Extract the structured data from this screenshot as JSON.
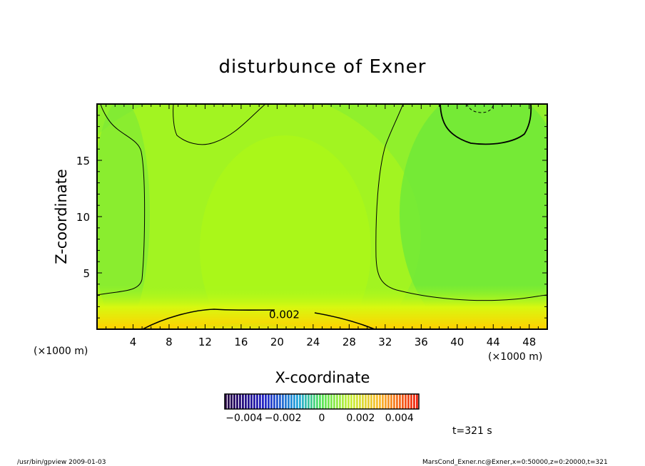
{
  "chart_data": {
    "type": "heatmap",
    "title": "disturbunce of Exner",
    "xlabel": "X-coordinate",
    "ylabel": "Z-coordinate",
    "x_unit_left": "(×1000 m)",
    "x_unit_right": "(×1000 m)",
    "x_ticks": [
      "4",
      "8",
      "12",
      "16",
      "20",
      "24",
      "28",
      "32",
      "36",
      "40",
      "44",
      "48"
    ],
    "y_ticks": [
      "5",
      "10",
      "15"
    ],
    "xlim": [
      0,
      50
    ],
    "ylim": [
      0,
      20
    ],
    "contour_labels": [
      {
        "text": "0.002",
        "x": 20.8,
        "z": 1.3
      }
    ],
    "colorbar": {
      "range": [
        -0.005,
        0.005
      ],
      "tick_labels": [
        "−0.004",
        "−0.002",
        "0",
        "0.002",
        "0.004"
      ],
      "tick_values": [
        -0.004,
        -0.002,
        0,
        0.002,
        0.004
      ]
    },
    "field_summary": {
      "background_value": 0.0006,
      "max_value_near_bottom": 0.0028,
      "min_value_top_right": -0.0015
    },
    "colors": {
      "low": "#200040",
      "mid": "#a8ff20",
      "high": "#ff3000"
    }
  },
  "annotation_time": "t=321 s",
  "footer_left": "/usr/bin/gpview   2009-01-03",
  "footer_right": "MarsCond_Exner.nc@Exner,x=0:50000,z=0:20000,t=321"
}
